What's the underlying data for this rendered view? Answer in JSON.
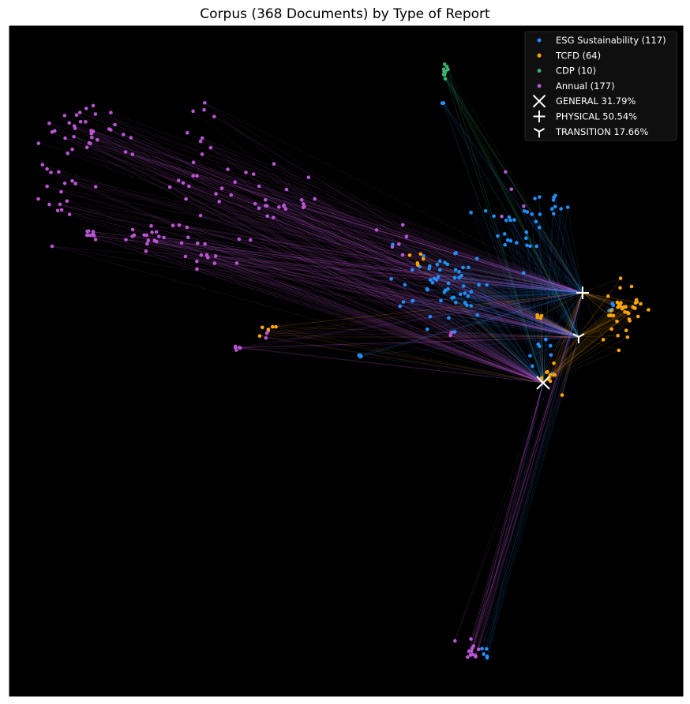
{
  "chart_data": {
    "type": "scatter",
    "title": "Corpus (368 Documents) by Type of Report",
    "xlabel": "",
    "ylabel": "",
    "grid": false,
    "axes_ticks": false,
    "background": "#000000",
    "legend_position": "top-right",
    "colors": {
      "ESG Sustainability": "#1e90ff",
      "TCFD": "#ffa500",
      "CDP": "#3cb371",
      "Annual": "#ba55d3",
      "centroid": "#ffffff"
    },
    "series": [
      {
        "name": "ESG Sustainability (117)",
        "key": "ESG Sustainability",
        "marker": "dot",
        "count": 117
      },
      {
        "name": "TCFD (64)",
        "key": "TCFD",
        "marker": "dot",
        "count": 64
      },
      {
        "name": "CDP (10)",
        "key": "CDP",
        "marker": "dot",
        "count": 10
      },
      {
        "name": "Annual (177)",
        "key": "Annual",
        "marker": "dot",
        "count": 177
      }
    ],
    "centroids": [
      {
        "name": "GENERAL 31.79%",
        "key": "GENERAL",
        "share": 31.79,
        "marker": "x",
        "x": 688,
        "y": 485
      },
      {
        "name": "PHYSICAL 50.54%",
        "key": "PHYSICAL",
        "share": 50.54,
        "marker": "plus",
        "x": 738,
        "y": 371
      },
      {
        "name": "TRANSITION 17.66%",
        "key": "TRANSITION",
        "share": 17.66,
        "marker": "tri",
        "x": 733,
        "y": 427
      }
    ],
    "xlim": [
      12,
      865
    ],
    "ylim": [
      33,
      882
    ],
    "clusters": [
      {
        "key": "Annual",
        "cx": 120,
        "cy": 170,
        "sx": 45,
        "sy": 25,
        "n": 34
      },
      {
        "key": "Annual",
        "cx": 75,
        "cy": 235,
        "sx": 25,
        "sy": 35,
        "n": 18
      },
      {
        "key": "Annual",
        "cx": 255,
        "cy": 160,
        "sx": 12,
        "sy": 30,
        "n": 10
      },
      {
        "key": "Annual",
        "cx": 280,
        "cy": 240,
        "sx": 55,
        "sy": 20,
        "n": 24
      },
      {
        "key": "Annual",
        "cx": 200,
        "cy": 300,
        "sx": 55,
        "sy": 15,
        "n": 22
      },
      {
        "key": "Annual",
        "cx": 260,
        "cy": 325,
        "sx": 30,
        "sy": 15,
        "n": 14
      },
      {
        "key": "Annual",
        "cx": 360,
        "cy": 260,
        "sx": 40,
        "sy": 12,
        "n": 12
      },
      {
        "key": "Annual",
        "cx": 115,
        "cy": 295,
        "sx": 5,
        "sy": 5,
        "n": 8
      },
      {
        "key": "Annual",
        "cx": 300,
        "cy": 440,
        "sx": 4,
        "sy": 3,
        "n": 5
      },
      {
        "key": "Annual",
        "cx": 600,
        "cy": 825,
        "sx": 10,
        "sy": 12,
        "n": 14
      },
      {
        "key": "Annual",
        "cx": 500,
        "cy": 300,
        "sx": 15,
        "sy": 15,
        "n": 6
      },
      {
        "key": "Annual",
        "cx": 650,
        "cy": 260,
        "sx": 20,
        "sy": 25,
        "n": 4
      },
      {
        "key": "Annual",
        "cx": 340,
        "cy": 425,
        "sx": 10,
        "sy": 8,
        "n": 3
      },
      {
        "key": "Annual",
        "cx": 570,
        "cy": 420,
        "sx": 3,
        "sy": 3,
        "n": 3
      },
      {
        "key": "ESG Sustainability",
        "cx": 560,
        "cy": 355,
        "sx": 45,
        "sy": 35,
        "n": 58
      },
      {
        "key": "ESG Sustainability",
        "cx": 650,
        "cy": 285,
        "sx": 30,
        "sy": 25,
        "n": 24
      },
      {
        "key": "ESG Sustainability",
        "cx": 700,
        "cy": 260,
        "sx": 15,
        "sy": 15,
        "n": 10
      },
      {
        "key": "ESG Sustainability",
        "cx": 690,
        "cy": 450,
        "sx": 15,
        "sy": 20,
        "n": 8
      },
      {
        "key": "ESG Sustainability",
        "cx": 615,
        "cy": 825,
        "sx": 5,
        "sy": 5,
        "n": 5
      },
      {
        "key": "ESG Sustainability",
        "cx": 457,
        "cy": 453,
        "sx": 2,
        "sy": 2,
        "n": 4
      },
      {
        "key": "ESG Sustainability",
        "cx": 560,
        "cy": 130,
        "sx": 2,
        "sy": 2,
        "n": 3
      },
      {
        "key": "ESG Sustainability",
        "cx": 775,
        "cy": 390,
        "sx": 10,
        "sy": 10,
        "n": 5
      },
      {
        "key": "TCFD",
        "cx": 785,
        "cy": 395,
        "sx": 25,
        "sy": 25,
        "n": 38
      },
      {
        "key": "TCFD",
        "cx": 695,
        "cy": 480,
        "sx": 10,
        "sy": 20,
        "n": 12
      },
      {
        "key": "TCFD",
        "cx": 340,
        "cy": 415,
        "sx": 12,
        "sy": 6,
        "n": 5
      },
      {
        "key": "TCFD",
        "cx": 530,
        "cy": 330,
        "sx": 10,
        "sy": 10,
        "n": 5
      },
      {
        "key": "TCFD",
        "cx": 680,
        "cy": 400,
        "sx": 5,
        "sy": 5,
        "n": 4
      },
      {
        "key": "CDP",
        "cx": 564,
        "cy": 88,
        "sx": 4,
        "sy": 8,
        "n": 10
      }
    ]
  }
}
